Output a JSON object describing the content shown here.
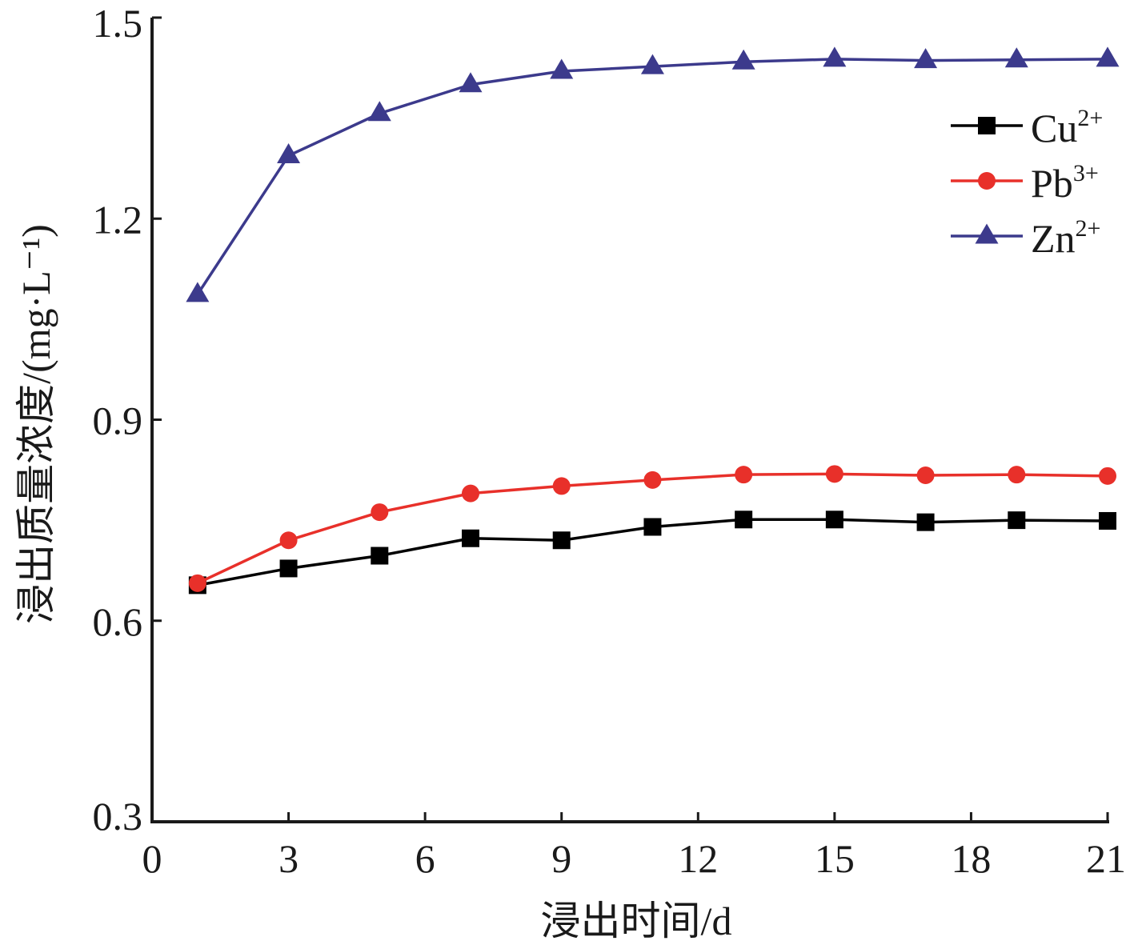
{
  "chart_data": {
    "type": "line",
    "xlabel": "浸出时间/d",
    "ylabel": "浸出质量浓度/(mg·L⁻¹)",
    "xlim": [
      0,
      21
    ],
    "ylim": [
      0.3,
      1.5
    ],
    "xticks": [
      0,
      3,
      6,
      9,
      12,
      15,
      18,
      21
    ],
    "yticks": [
      0.3,
      0.6,
      0.9,
      1.2,
      1.5
    ],
    "ytick_labels": [
      "0.3",
      "0.6",
      "0.9",
      "1.2",
      "1.5"
    ],
    "grid": false,
    "legend_position": "top-right",
    "x": [
      1,
      3,
      5,
      7,
      9,
      11,
      13,
      15,
      17,
      19,
      21
    ],
    "series": [
      {
        "name": "Cu",
        "superscript": "2+",
        "color": "#000000",
        "marker": "square",
        "values": [
          0.653,
          0.678,
          0.697,
          0.723,
          0.72,
          0.74,
          0.751,
          0.751,
          0.747,
          0.75,
          0.749
        ]
      },
      {
        "name": "Pb",
        "superscript": "3+",
        "color": "#e8302a",
        "marker": "circle",
        "values": [
          0.656,
          0.72,
          0.762,
          0.79,
          0.801,
          0.81,
          0.818,
          0.819,
          0.817,
          0.818,
          0.816
        ]
      },
      {
        "name": "Zn",
        "superscript": "2+",
        "color": "#3c3a8c",
        "marker": "triangle",
        "values": [
          1.087,
          1.294,
          1.357,
          1.4,
          1.42,
          1.427,
          1.434,
          1.438,
          1.436,
          1.437,
          1.438
        ]
      }
    ]
  }
}
